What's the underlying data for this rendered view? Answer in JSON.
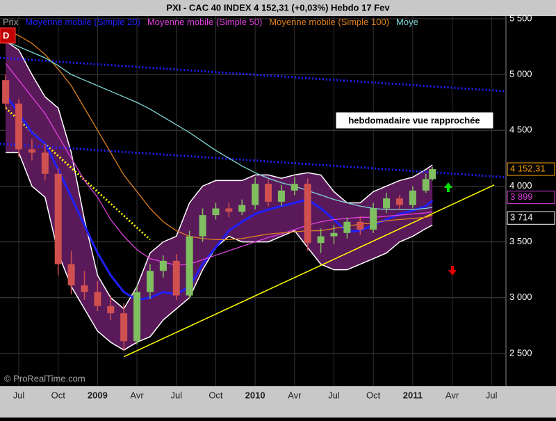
{
  "chart_data": {
    "type": "candlestick",
    "title": "PXI - CAC 40 INDEX    4 152,31 (+0,03%)    Hebdo  17 Fev",
    "watermark": "© ProRealTime.com",
    "marker": "D",
    "annotation": "hebdomadaire vue rapprochée",
    "price_label": "Prix",
    "x": [
      5,
      6,
      7,
      8,
      9,
      10,
      11,
      12,
      13,
      14,
      15,
      16,
      17,
      18,
      19,
      20,
      21,
      22,
      23,
      24,
      25,
      26,
      27,
      28,
      29,
      30,
      31,
      32,
      33,
      34,
      35,
      36,
      37,
      37.5
    ],
    "open": [
      4950,
      4740,
      4330,
      4300,
      4110,
      3300,
      3110,
      3050,
      2925,
      2860,
      2610,
      3050,
      3240,
      3330,
      3020,
      3550,
      3740,
      3800,
      3770,
      3830,
      4020,
      3860,
      3960,
      4020,
      3490,
      3550,
      3580,
      3680,
      3610,
      3800,
      3890,
      3830,
      3960,
      4063
    ],
    "high": [
      5000,
      4780,
      4420,
      4380,
      4160,
      3420,
      3240,
      3150,
      3020,
      2950,
      3110,
      3300,
      3380,
      3390,
      3600,
      3800,
      3850,
      3850,
      3880,
      4080,
      4060,
      4010,
      4080,
      4070,
      3620,
      3650,
      3720,
      3730,
      3850,
      3940,
      3920,
      4000,
      4110,
      4170
    ],
    "low": [
      4690,
      4260,
      4230,
      4050,
      3200,
      3030,
      2980,
      2880,
      2800,
      2520,
      2580,
      2990,
      3180,
      2980,
      2990,
      3500,
      3700,
      3720,
      3740,
      3790,
      3820,
      3820,
      3920,
      3420,
      3400,
      3480,
      3530,
      3560,
      3580,
      3760,
      3790,
      3800,
      3940,
      4050
    ],
    "close": [
      4740,
      4330,
      4300,
      4110,
      3300,
      3110,
      3050,
      2925,
      2860,
      2610,
      3050,
      3240,
      3330,
      3020,
      3550,
      3740,
      3800,
      3770,
      3830,
      4020,
      3860,
      3960,
      4020,
      3490,
      3550,
      3580,
      3680,
      3610,
      3800,
      3890,
      3830,
      3960,
      4063,
      4152.31
    ],
    "up_color": "#7fbf5f",
    "down_color": "#d05050",
    "series": [
      {
        "name": "Moyenne mobile (Simple 20)",
        "color": "#2020ff",
        "values": [
          4820,
          4650,
          4480,
          4380,
          4150,
          3900,
          3650,
          3400,
          3200,
          3050,
          2980,
          3000,
          3050,
          3030,
          3100,
          3300,
          3450,
          3600,
          3680,
          3750,
          3790,
          3820,
          3850,
          3880,
          3800,
          3700,
          3590,
          3600,
          3650,
          3700,
          3750,
          3780,
          3820,
          3870
        ]
      },
      {
        "name": "Moyenne mobile (Simple 50)",
        "color": "#e040e0",
        "values": [
          5100,
          4950,
          4800,
          4650,
          4450,
          4250,
          4050,
          3900,
          3700,
          3550,
          3430,
          3350,
          3320,
          3290,
          3300,
          3340,
          3380,
          3420,
          3460,
          3500,
          3540,
          3570,
          3610,
          3650,
          3680,
          3700,
          3710,
          3720,
          3720,
          3730,
          3740,
          3750,
          3760,
          3770
        ]
      },
      {
        "name": "Moyenne mobile (Simple 100)",
        "color": "#e08020",
        "values": [
          5400,
          5350,
          5280,
          5180,
          5050,
          4900,
          4700,
          4500,
          4300,
          4100,
          3950,
          3800,
          3680,
          3600,
          3550,
          3530,
          3520,
          3520,
          3530,
          3550,
          3570,
          3580,
          3590,
          3600,
          3600,
          3620,
          3640,
          3660,
          3670,
          3690,
          3700,
          3710,
          3720,
          3740
        ]
      },
      {
        "name": "Moye",
        "color": "#7fd8d8",
        "values": [
          5300,
          5250,
          5200,
          5150,
          5080,
          5000,
          4950,
          4900,
          4850,
          4800,
          4750,
          4690,
          4620,
          4550,
          4480,
          4400,
          4320,
          4250,
          4180,
          4120,
          4070,
          4030,
          4000,
          3960,
          3920,
          3880,
          3850,
          3820,
          3800,
          3790,
          3790,
          3790,
          3800,
          3810
        ]
      }
    ],
    "bands": {
      "color": "#5a1a5a",
      "upper": [
        5300,
        5220,
        5000,
        4800,
        4700,
        4300,
        3700,
        3200,
        3000,
        2900,
        3100,
        3400,
        3500,
        3550,
        3850,
        4000,
        4050,
        4050,
        4050,
        4100,
        4100,
        4070,
        4100,
        4120,
        4100,
        3950,
        3850,
        3850,
        3950,
        4000,
        4050,
        4080,
        4150,
        4190
      ],
      "lower": [
        4300,
        4300,
        4000,
        3900,
        3400,
        3100,
        2900,
        2700,
        2600,
        2530,
        2600,
        2650,
        2800,
        2900,
        3000,
        3250,
        3450,
        3550,
        3500,
        3500,
        3500,
        3550,
        3600,
        3450,
        3300,
        3250,
        3250,
        3300,
        3350,
        3400,
        3500,
        3550,
        3620,
        3650
      ]
    },
    "trendlines": [
      {
        "color": "#ffff00",
        "dash": false,
        "x": [
          14,
          42.2
        ],
        "values": [
          2470,
          4010
        ]
      },
      {
        "color": "#ffff00",
        "dash": true,
        "x": [
          5,
          16
        ],
        "values": [
          4700,
          3520
        ]
      },
      {
        "color": "#2020ff",
        "dash": true,
        "x": [
          4.57,
          43.1
        ],
        "values": [
          5150,
          4850
        ]
      },
      {
        "color": "#2020ff",
        "dash": true,
        "x": [
          4.57,
          43.1
        ],
        "values": [
          4380,
          4080
        ]
      }
    ],
    "price_tags": [
      {
        "value": 4152.31,
        "label": "4 152,31",
        "color": "#ffa500"
      },
      {
        "value": 3899,
        "label": "3 899",
        "color": "#e040e0"
      },
      {
        "value": 3714,
        "label": "3 714",
        "color": "#ffffff"
      }
    ],
    "xlim": [
      4.57,
      43.1
    ],
    "ylim": [
      2206,
      5525
    ],
    "xticks": [
      {
        "value": 6,
        "label": "Jul"
      },
      {
        "value": 9,
        "label": "Oct"
      },
      {
        "value": 12,
        "label": "2009"
      },
      {
        "value": 15,
        "label": "Avr"
      },
      {
        "value": 18,
        "label": "Jul"
      },
      {
        "value": 21,
        "label": "Oct"
      },
      {
        "value": 24,
        "label": "2010"
      },
      {
        "value": 27,
        "label": "Avr"
      },
      {
        "value": 30,
        "label": "Jul"
      },
      {
        "value": 33,
        "label": "Oct"
      },
      {
        "value": 36,
        "label": "2011"
      },
      {
        "value": 39,
        "label": "Avr"
      },
      {
        "value": 42,
        "label": "Jul"
      }
    ],
    "yticks": [
      {
        "value": 2500,
        "label": "2 500"
      },
      {
        "value": 3000,
        "label": "3 000"
      },
      {
        "value": 3500,
        "label": "3 500"
      },
      {
        "value": 4000,
        "label": "4 000"
      },
      {
        "value": 4500,
        "label": "4 500"
      },
      {
        "value": 5000,
        "label": "5 000"
      },
      {
        "value": 5500,
        "label": "5 500"
      }
    ],
    "grid": true
  }
}
